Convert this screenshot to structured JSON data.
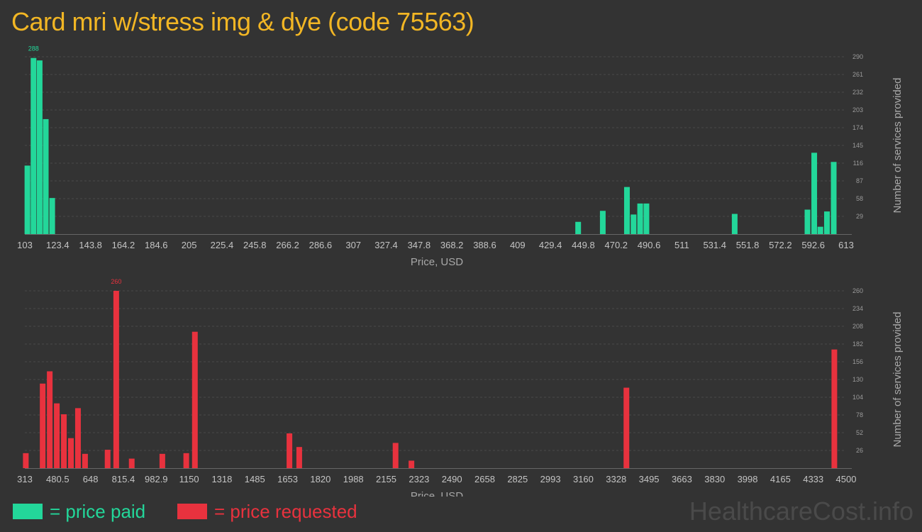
{
  "title": "Card mri w/stress img & dye (code 75563)",
  "watermark": "HealthcareCost.info",
  "legend": {
    "paid_label": "= price paid",
    "requested_label": "= price requested"
  },
  "colors": {
    "paid": "#23d79a",
    "requested": "#e8323e",
    "title": "#f2b624"
  },
  "chart_data": [
    {
      "type": "bar",
      "series_name": "price paid",
      "xlabel": "Price, USD",
      "ylabel": "Number of services provided",
      "x_tick_labels": [
        "103",
        "123.4",
        "143.8",
        "164.2",
        "184.6",
        "205",
        "225.4",
        "245.8",
        "266.2",
        "286.6",
        "307",
        "327.4",
        "347.8",
        "368.2",
        "388.6",
        "409",
        "429.4",
        "449.8",
        "470.2",
        "490.6",
        "511",
        "531.4",
        "551.8",
        "572.2",
        "592.6",
        "613"
      ],
      "y_tick_labels": [
        "29",
        "58",
        "87",
        "116",
        "145",
        "174",
        "203",
        "232",
        "261",
        "290"
      ],
      "ylim": [
        0,
        290
      ],
      "xlim": [
        103,
        613
      ],
      "peak_label": "288",
      "bars": [
        {
          "x": 104.6,
          "value": 112
        },
        {
          "x": 108.4,
          "value": 288
        },
        {
          "x": 112.2,
          "value": 284
        },
        {
          "x": 116.0,
          "value": 188
        },
        {
          "x": 120.0,
          "value": 59
        },
        {
          "x": 446.6,
          "value": 20
        },
        {
          "x": 461.9,
          "value": 38
        },
        {
          "x": 476.9,
          "value": 77
        },
        {
          "x": 481.0,
          "value": 32
        },
        {
          "x": 485.1,
          "value": 50
        },
        {
          "x": 489.0,
          "value": 50
        },
        {
          "x": 543.8,
          "value": 33
        },
        {
          "x": 589.0,
          "value": 40
        },
        {
          "x": 593.2,
          "value": 133
        },
        {
          "x": 597.0,
          "value": 12
        },
        {
          "x": 601.1,
          "value": 37
        },
        {
          "x": 605.3,
          "value": 118
        }
      ]
    },
    {
      "type": "bar",
      "series_name": "price requested",
      "xlabel": "Price, USD",
      "ylabel": "Number of services provided",
      "x_tick_labels": [
        "313",
        "480.5",
        "648",
        "815.4",
        "982.9",
        "1150",
        "1318",
        "1485",
        "1653",
        "1820",
        "1988",
        "2155",
        "2323",
        "2490",
        "2658",
        "2825",
        "2993",
        "3160",
        "3328",
        "3495",
        "3663",
        "3830",
        "3998",
        "4165",
        "4333",
        "4500"
      ],
      "y_tick_labels": [
        "26",
        "52",
        "78",
        "104",
        "130",
        "156",
        "182",
        "208",
        "234",
        "260"
      ],
      "ylim": [
        0,
        260
      ],
      "xlim": [
        313,
        4500
      ],
      "peak_label": "260",
      "bars": [
        {
          "x": 318,
          "value": 22
        },
        {
          "x": 404,
          "value": 124
        },
        {
          "x": 440,
          "value": 142
        },
        {
          "x": 476,
          "value": 95
        },
        {
          "x": 512,
          "value": 79
        },
        {
          "x": 548,
          "value": 44
        },
        {
          "x": 584,
          "value": 88
        },
        {
          "x": 620,
          "value": 21
        },
        {
          "x": 735,
          "value": 27
        },
        {
          "x": 779,
          "value": 260
        },
        {
          "x": 858,
          "value": 14
        },
        {
          "x": 1014,
          "value": 21
        },
        {
          "x": 1136,
          "value": 22
        },
        {
          "x": 1180,
          "value": 200
        },
        {
          "x": 1662,
          "value": 51
        },
        {
          "x": 1712,
          "value": 31
        },
        {
          "x": 2203,
          "value": 37
        },
        {
          "x": 2284,
          "value": 11
        },
        {
          "x": 3380,
          "value": 118
        },
        {
          "x": 4440,
          "value": 174
        }
      ]
    }
  ]
}
